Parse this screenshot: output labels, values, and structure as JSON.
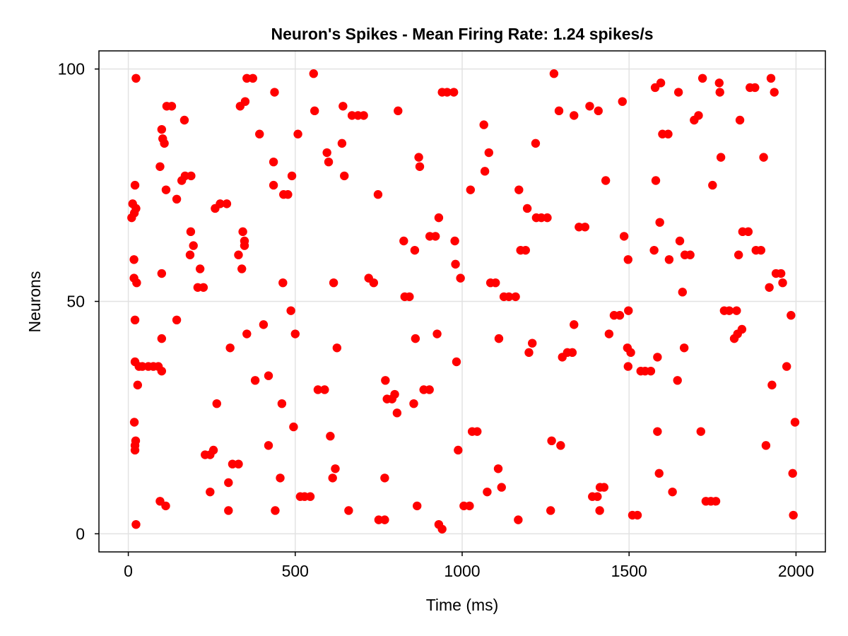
{
  "chart_data": {
    "type": "scatter",
    "title": "Neuron's Spikes - Mean Firing Rate: 1.24 spikes/s",
    "xlabel": "Time (ms)",
    "ylabel": "Neurons",
    "xlim": [
      -88,
      2088
    ],
    "ylim": [
      -3.9,
      103.9
    ],
    "xticks": [
      0,
      500,
      1000,
      1500,
      2000
    ],
    "xtick_labels": [
      "0",
      "500",
      "1000",
      "1500",
      "2000"
    ],
    "yticks": [
      0,
      50,
      100
    ],
    "ytick_labels": [
      "0",
      "50",
      "100"
    ],
    "grid": true,
    "marker_color": "#ff0000",
    "series": [
      {
        "points": [
          [
            10,
            68
          ],
          [
            13,
            71
          ],
          [
            18,
            69
          ],
          [
            20,
            75
          ],
          [
            23,
            70
          ],
          [
            17,
            59
          ],
          [
            17,
            55
          ],
          [
            25,
            54
          ],
          [
            20,
            46
          ],
          [
            20,
            37
          ],
          [
            32,
            36
          ],
          [
            42,
            36
          ],
          [
            60,
            36
          ],
          [
            75,
            36
          ],
          [
            90,
            36
          ],
          [
            100,
            35
          ],
          [
            28,
            32
          ],
          [
            18,
            24
          ],
          [
            22,
            20
          ],
          [
            20,
            19
          ],
          [
            20,
            18
          ],
          [
            23,
            2
          ],
          [
            23,
            98
          ],
          [
            100,
            87
          ],
          [
            103,
            85
          ],
          [
            108,
            84
          ],
          [
            95,
            79
          ],
          [
            115,
            92
          ],
          [
            130,
            92
          ],
          [
            113,
            74
          ],
          [
            145,
            72
          ],
          [
            160,
            76
          ],
          [
            168,
            89
          ],
          [
            170,
            77
          ],
          [
            188,
            77
          ],
          [
            187,
            65
          ],
          [
            185,
            60
          ],
          [
            195,
            62
          ],
          [
            215,
            57
          ],
          [
            208,
            53
          ],
          [
            225,
            53
          ],
          [
            100,
            56
          ],
          [
            100,
            42
          ],
          [
            95,
            7
          ],
          [
            112,
            6
          ],
          [
            145,
            46
          ],
          [
            230,
            17
          ],
          [
            245,
            17
          ],
          [
            255,
            18
          ],
          [
            245,
            9
          ],
          [
            260,
            70
          ],
          [
            275,
            71
          ],
          [
            295,
            71
          ],
          [
            265,
            28
          ],
          [
            300,
            11
          ],
          [
            300,
            5
          ],
          [
            305,
            40
          ],
          [
            312,
            15
          ],
          [
            330,
            15
          ],
          [
            330,
            60
          ],
          [
            335,
            92
          ],
          [
            350,
            93
          ],
          [
            355,
            98
          ],
          [
            373,
            98
          ],
          [
            340,
            57
          ],
          [
            343,
            65
          ],
          [
            348,
            63
          ],
          [
            348,
            62
          ],
          [
            355,
            43
          ],
          [
            380,
            33
          ],
          [
            393,
            86
          ],
          [
            405,
            45
          ],
          [
            420,
            34
          ],
          [
            420,
            19
          ],
          [
            435,
            75
          ],
          [
            435,
            80
          ],
          [
            438,
            95
          ],
          [
            440,
            5
          ],
          [
            455,
            12
          ],
          [
            460,
            28
          ],
          [
            463,
            54
          ],
          [
            465,
            73
          ],
          [
            478,
            73
          ],
          [
            487,
            48
          ],
          [
            490,
            77
          ],
          [
            495,
            23
          ],
          [
            500,
            43
          ],
          [
            508,
            86
          ],
          [
            515,
            8
          ],
          [
            528,
            8
          ],
          [
            545,
            8
          ],
          [
            555,
            99
          ],
          [
            558,
            91
          ],
          [
            568,
            31
          ],
          [
            588,
            31
          ],
          [
            595,
            82
          ],
          [
            600,
            80
          ],
          [
            605,
            21
          ],
          [
            612,
            12
          ],
          [
            615,
            54
          ],
          [
            620,
            14
          ],
          [
            625,
            40
          ],
          [
            640,
            84
          ],
          [
            643,
            92
          ],
          [
            647,
            77
          ],
          [
            660,
            5
          ],
          [
            670,
            90
          ],
          [
            688,
            90
          ],
          [
            705,
            90
          ],
          [
            720,
            55
          ],
          [
            735,
            54
          ],
          [
            748,
            73
          ],
          [
            750,
            3
          ],
          [
            768,
            3
          ],
          [
            768,
            12
          ],
          [
            770,
            33
          ],
          [
            775,
            29
          ],
          [
            790,
            29
          ],
          [
            798,
            30
          ],
          [
            805,
            26
          ],
          [
            808,
            91
          ],
          [
            825,
            63
          ],
          [
            828,
            51
          ],
          [
            842,
            51
          ],
          [
            855,
            28
          ],
          [
            858,
            61
          ],
          [
            860,
            42
          ],
          [
            865,
            6
          ],
          [
            870,
            81
          ],
          [
            873,
            79
          ],
          [
            885,
            31
          ],
          [
            902,
            31
          ],
          [
            903,
            64
          ],
          [
            920,
            64
          ],
          [
            925,
            43
          ],
          [
            930,
            68
          ],
          [
            930,
            2
          ],
          [
            940,
            1
          ],
          [
            940,
            95
          ],
          [
            955,
            95
          ],
          [
            975,
            95
          ],
          [
            978,
            63
          ],
          [
            980,
            58
          ],
          [
            983,
            37
          ],
          [
            988,
            18
          ],
          [
            995,
            55
          ],
          [
            1005,
            6
          ],
          [
            1022,
            6
          ],
          [
            1025,
            74
          ],
          [
            1030,
            22
          ],
          [
            1045,
            22
          ],
          [
            1065,
            88
          ],
          [
            1068,
            78
          ],
          [
            1075,
            9
          ],
          [
            1080,
            82
          ],
          [
            1085,
            54
          ],
          [
            1100,
            54
          ],
          [
            1108,
            14
          ],
          [
            1110,
            42
          ],
          [
            1118,
            10
          ],
          [
            1125,
            51
          ],
          [
            1140,
            51
          ],
          [
            1160,
            51
          ],
          [
            1168,
            3
          ],
          [
            1170,
            74
          ],
          [
            1175,
            61
          ],
          [
            1190,
            61
          ],
          [
            1195,
            70
          ],
          [
            1200,
            39
          ],
          [
            1210,
            41
          ],
          [
            1220,
            84
          ],
          [
            1222,
            68
          ],
          [
            1237,
            68
          ],
          [
            1255,
            68
          ],
          [
            1265,
            5
          ],
          [
            1268,
            20
          ],
          [
            1275,
            99
          ],
          [
            1290,
            91
          ],
          [
            1295,
            19
          ],
          [
            1300,
            38
          ],
          [
            1315,
            39
          ],
          [
            1330,
            39
          ],
          [
            1335,
            45
          ],
          [
            1335,
            90
          ],
          [
            1350,
            66
          ],
          [
            1368,
            66
          ],
          [
            1382,
            92
          ],
          [
            1390,
            8
          ],
          [
            1405,
            8
          ],
          [
            1408,
            91
          ],
          [
            1412,
            5
          ],
          [
            1413,
            10
          ],
          [
            1425,
            10
          ],
          [
            1430,
            76
          ],
          [
            1440,
            43
          ],
          [
            1455,
            47
          ],
          [
            1472,
            47
          ],
          [
            1480,
            93
          ],
          [
            1485,
            64
          ],
          [
            1495,
            40
          ],
          [
            1497,
            59
          ],
          [
            1497,
            36
          ],
          [
            1498,
            48
          ],
          [
            1505,
            39
          ],
          [
            1510,
            4
          ],
          [
            1525,
            4
          ],
          [
            1535,
            35
          ],
          [
            1548,
            35
          ],
          [
            1565,
            35
          ],
          [
            1575,
            61
          ],
          [
            1578,
            96
          ],
          [
            1580,
            76
          ],
          [
            1585,
            38
          ],
          [
            1585,
            22
          ],
          [
            1590,
            13
          ],
          [
            1592,
            67
          ],
          [
            1595,
            97
          ],
          [
            1600,
            86
          ],
          [
            1617,
            86
          ],
          [
            1620,
            59
          ],
          [
            1630,
            9
          ],
          [
            1645,
            33
          ],
          [
            1648,
            95
          ],
          [
            1652,
            63
          ],
          [
            1660,
            52
          ],
          [
            1665,
            40
          ],
          [
            1667,
            60
          ],
          [
            1683,
            60
          ],
          [
            1695,
            89
          ],
          [
            1708,
            90
          ],
          [
            1715,
            22
          ],
          [
            1720,
            98
          ],
          [
            1730,
            7
          ],
          [
            1745,
            7
          ],
          [
            1760,
            7
          ],
          [
            1750,
            75
          ],
          [
            1770,
            97
          ],
          [
            1772,
            95
          ],
          [
            1775,
            81
          ],
          [
            1785,
            48
          ],
          [
            1800,
            48
          ],
          [
            1815,
            42
          ],
          [
            1822,
            48
          ],
          [
            1825,
            43
          ],
          [
            1828,
            60
          ],
          [
            1832,
            89
          ],
          [
            1838,
            44
          ],
          [
            1840,
            65
          ],
          [
            1857,
            65
          ],
          [
            1862,
            96
          ],
          [
            1877,
            96
          ],
          [
            1880,
            61
          ],
          [
            1895,
            61
          ],
          [
            1903,
            81
          ],
          [
            1910,
            19
          ],
          [
            1920,
            53
          ],
          [
            1925,
            98
          ],
          [
            1928,
            32
          ],
          [
            1935,
            95
          ],
          [
            1940,
            56
          ],
          [
            1955,
            56
          ],
          [
            1960,
            54
          ],
          [
            1972,
            36
          ],
          [
            1985,
            47
          ],
          [
            1990,
            13
          ],
          [
            1992,
            4
          ],
          [
            1997,
            24
          ]
        ]
      }
    ]
  }
}
